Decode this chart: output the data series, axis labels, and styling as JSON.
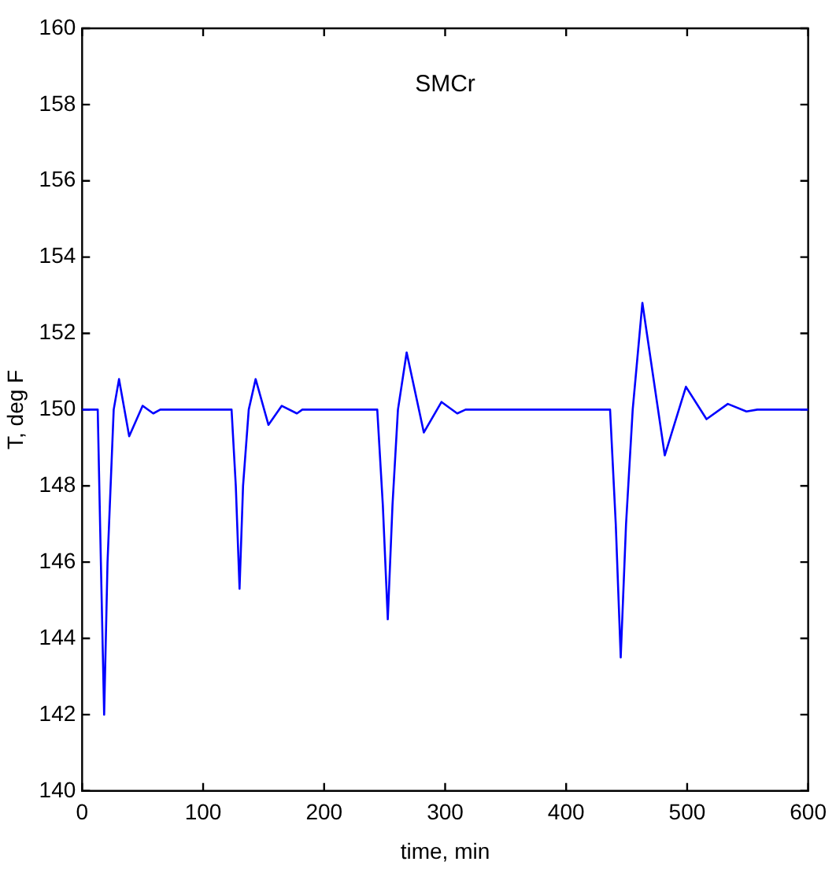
{
  "chart_data": {
    "type": "line",
    "xlabel": "time, min",
    "ylabel": "T, deg F",
    "annotations": [
      "SMCr"
    ],
    "xlim": [
      0,
      600
    ],
    "xticks": [
      0,
      100,
      200,
      300,
      400,
      500,
      600
    ],
    "ylim": [
      140,
      160
    ],
    "yticks": [
      140,
      142,
      144,
      146,
      148,
      150,
      152,
      154,
      156,
      158,
      160
    ],
    "grid": false,
    "legend": false,
    "marker": "none",
    "line_style": "solid",
    "series": [
      {
        "color": "#0000ff",
        "x": [
          0,
          12.9,
          15.5,
          18.2,
          21,
          26.1,
          30.5,
          38.9,
          50,
          58.8,
          64.6,
          123.5,
          127,
          130.1,
          133,
          137.7,
          143.4,
          154,
          165,
          177.5,
          182,
          243.9,
          248.5,
          252.6,
          256.5,
          261,
          268.2,
          282.4,
          297,
          310,
          316.9,
          436.3,
          441,
          445.1,
          449.5,
          455,
          463,
          481.5,
          499,
          516,
          533.6,
          549,
          558,
          600
        ],
        "values": [
          150,
          150,
          146,
          142,
          146,
          150,
          150.8,
          149.3,
          150.1,
          149.9,
          150,
          150,
          148,
          145.3,
          148,
          150,
          150.8,
          149.6,
          150.1,
          149.9,
          150,
          150,
          147.5,
          144.5,
          147.5,
          150,
          151.5,
          149.4,
          150.2,
          149.9,
          150,
          150,
          147,
          143.5,
          147,
          150,
          152.8,
          148.8,
          150.6,
          149.75,
          150.15,
          149.95,
          150,
          150
        ]
      }
    ]
  }
}
